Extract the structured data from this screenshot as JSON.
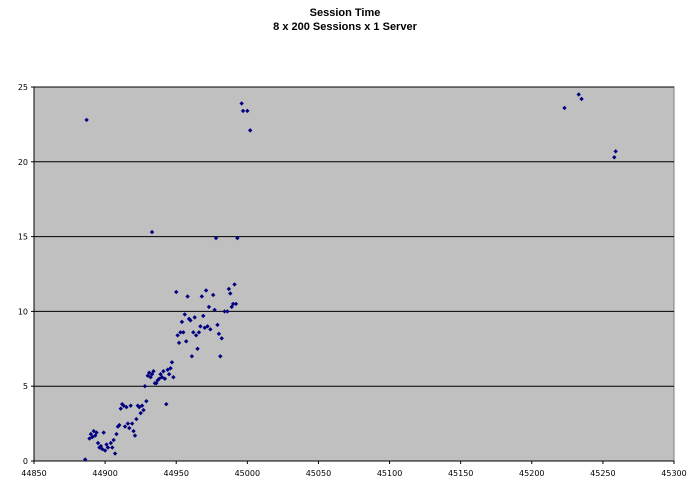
{
  "chart_data": {
    "type": "scatter",
    "title": "Session Time",
    "subtitle": "8 x 200 Sessions x 1 Server",
    "xlabel": "",
    "ylabel": "",
    "xlim": [
      44850,
      45300
    ],
    "ylim": [
      0,
      25
    ],
    "x_ticks": [
      44850,
      44900,
      44950,
      45000,
      45050,
      45100,
      45150,
      45200,
      45250,
      45300
    ],
    "y_ticks": [
      0,
      5,
      10,
      15,
      20,
      25
    ],
    "grid": "horizontal",
    "legend": "none",
    "colors": {
      "plot_area": "#c0c0c0",
      "gridline": "#000000",
      "marker": "#000080"
    },
    "series": [
      {
        "marker": "diamond",
        "points": [
          [
            44887,
            22.8
          ],
          [
            44886,
            0.1
          ],
          [
            44889,
            1.5
          ],
          [
            44890,
            1.8
          ],
          [
            44891,
            1.6
          ],
          [
            44892,
            2.0
          ],
          [
            44893,
            1.7
          ],
          [
            44894,
            1.9
          ],
          [
            44895,
            1.2
          ],
          [
            44896,
            0.9
          ],
          [
            44897,
            1.0
          ],
          [
            44898,
            0.8
          ],
          [
            44899,
            1.9
          ],
          [
            44900,
            0.7
          ],
          [
            44901,
            1.1
          ],
          [
            44902,
            0.9
          ],
          [
            44904,
            1.2
          ],
          [
            44905,
            0.9
          ],
          [
            44906,
            1.4
          ],
          [
            44907,
            0.5
          ],
          [
            44908,
            1.8
          ],
          [
            44909,
            2.3
          ],
          [
            44910,
            2.4
          ],
          [
            44911,
            3.5
          ],
          [
            44912,
            3.8
          ],
          [
            44913,
            3.7
          ],
          [
            44914,
            2.3
          ],
          [
            44915,
            3.6
          ],
          [
            44916,
            2.5
          ],
          [
            44917,
            2.2
          ],
          [
            44918,
            3.7
          ],
          [
            44919,
            2.5
          ],
          [
            44920,
            2.0
          ],
          [
            44921,
            1.7
          ],
          [
            44922,
            2.8
          ],
          [
            44923,
            3.7
          ],
          [
            44924,
            3.6
          ],
          [
            44925,
            3.2
          ],
          [
            44926,
            3.7
          ],
          [
            44927,
            3.4
          ],
          [
            44928,
            5.0
          ],
          [
            44929,
            4.0
          ],
          [
            44930,
            5.7
          ],
          [
            44931,
            5.9
          ],
          [
            44932,
            5.6
          ],
          [
            44933,
            5.8
          ],
          [
            44934,
            6.0
          ],
          [
            44935,
            5.2
          ],
          [
            44936,
            5.2
          ],
          [
            44937,
            5.4
          ],
          [
            44938,
            5.5
          ],
          [
            44939,
            5.8
          ],
          [
            44940,
            5.6
          ],
          [
            44941,
            6.0
          ],
          [
            44942,
            5.5
          ],
          [
            44943,
            3.8
          ],
          [
            44944,
            6.1
          ],
          [
            44945,
            5.8
          ],
          [
            44946,
            6.2
          ],
          [
            44947,
            6.6
          ],
          [
            44948,
            5.6
          ],
          [
            44933,
            15.3
          ],
          [
            44950,
            11.3
          ],
          [
            44951,
            8.4
          ],
          [
            44952,
            7.9
          ],
          [
            44953,
            8.6
          ],
          [
            44954,
            9.3
          ],
          [
            44955,
            8.6
          ],
          [
            44956,
            9.8
          ],
          [
            44957,
            8.0
          ],
          [
            44958,
            11.0
          ],
          [
            44959,
            9.5
          ],
          [
            44960,
            9.4
          ],
          [
            44961,
            7.0
          ],
          [
            44962,
            8.6
          ],
          [
            44963,
            9.6
          ],
          [
            44964,
            8.4
          ],
          [
            44965,
            7.5
          ],
          [
            44966,
            8.6
          ],
          [
            44967,
            9.0
          ],
          [
            44968,
            11.0
          ],
          [
            44969,
            9.7
          ],
          [
            44970,
            8.9
          ],
          [
            44971,
            11.4
          ],
          [
            44972,
            9.0
          ],
          [
            44973,
            10.3
          ],
          [
            44974,
            8.8
          ],
          [
            44976,
            11.1
          ],
          [
            44977,
            10.1
          ],
          [
            44978,
            14.9
          ],
          [
            44979,
            9.1
          ],
          [
            44980,
            8.5
          ],
          [
            44981,
            7.0
          ],
          [
            44982,
            8.2
          ],
          [
            44984,
            10.0
          ],
          [
            44986,
            10.0
          ],
          [
            44987,
            11.5
          ],
          [
            44988,
            11.2
          ],
          [
            44989,
            10.3
          ],
          [
            44990,
            10.5
          ],
          [
            44991,
            11.8
          ],
          [
            44992,
            10.5
          ],
          [
            44993,
            14.9
          ],
          [
            44996,
            23.9
          ],
          [
            44997,
            23.4
          ],
          [
            45000,
            23.4
          ],
          [
            45002,
            22.1
          ],
          [
            45223,
            23.6
          ],
          [
            45233,
            24.5
          ],
          [
            45235,
            24.2
          ],
          [
            45258,
            20.3
          ],
          [
            45259,
            20.7
          ]
        ]
      }
    ]
  }
}
